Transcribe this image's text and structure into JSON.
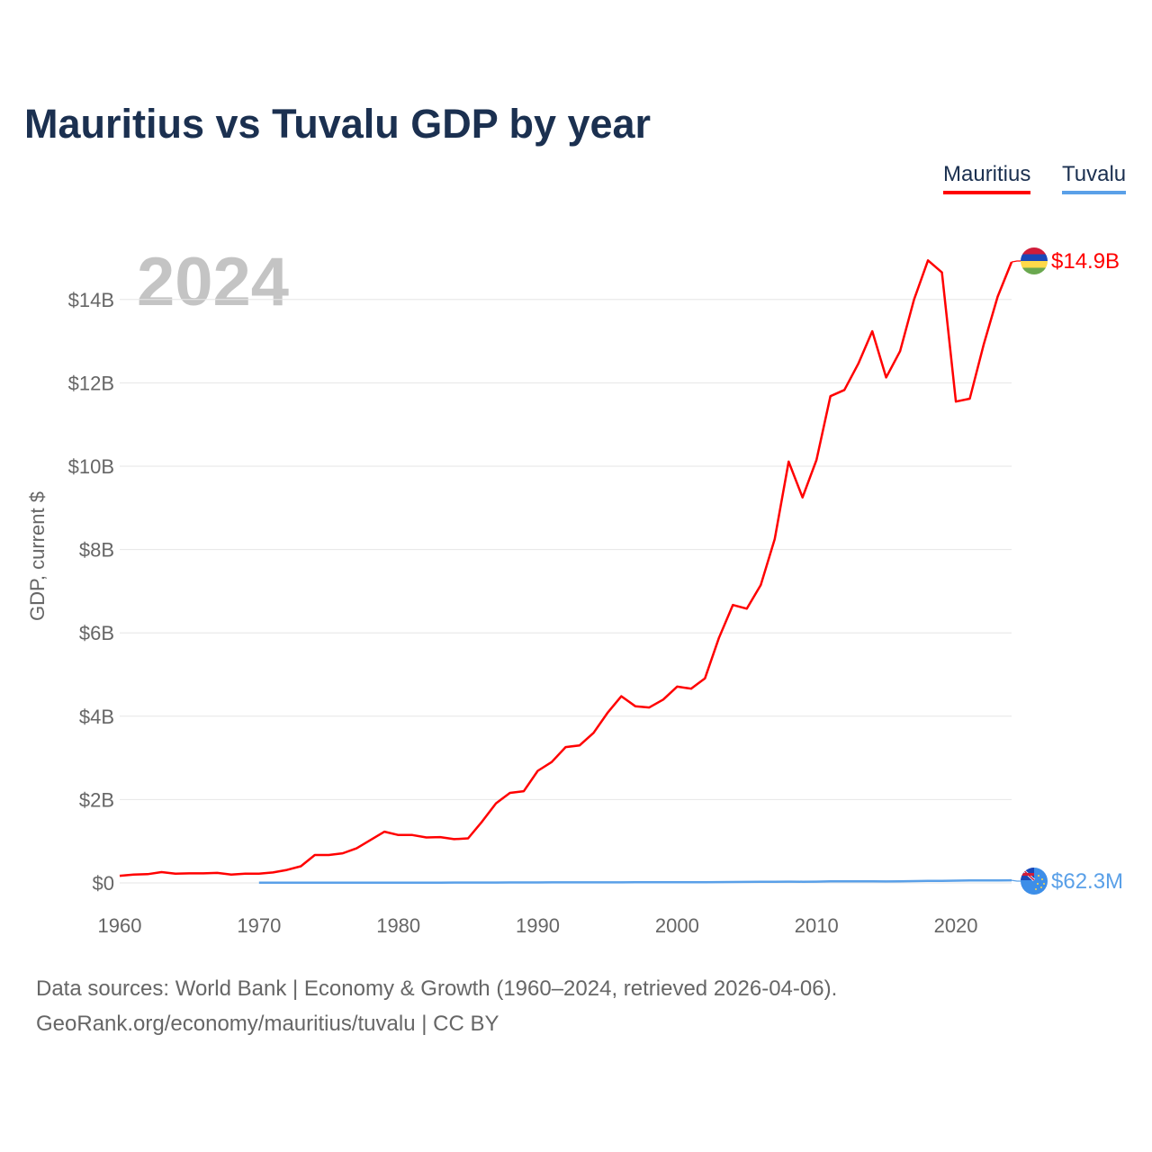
{
  "chart_data": {
    "type": "line",
    "title": "Mauritius vs Tuvalu GDP by year",
    "ylabel": "GDP, current $",
    "xlabel": "",
    "current_year_label": "2024",
    "xlim": [
      1960,
      2024
    ],
    "ylim": [
      0,
      15
    ],
    "x_ticks": [
      1960,
      1970,
      1980,
      1990,
      2000,
      2010,
      2020
    ],
    "y_ticks": [
      0,
      2,
      4,
      6,
      8,
      10,
      12,
      14
    ],
    "y_tick_labels": [
      "$0",
      "$2B",
      "$4B",
      "$6B",
      "$8B",
      "$10B",
      "$12B",
      "$14B"
    ],
    "grid": true,
    "legend_position": "top-right",
    "series": [
      {
        "name": "Mauritius",
        "color": "#ff0000",
        "start_year": 1960,
        "unit": "billion USD",
        "end_label": "$14.9B",
        "flag": "mauritius-flag",
        "values": [
          0.17,
          0.2,
          0.21,
          0.26,
          0.22,
          0.23,
          0.23,
          0.24,
          0.2,
          0.22,
          0.22,
          0.25,
          0.31,
          0.4,
          0.67,
          0.67,
          0.71,
          0.83,
          1.03,
          1.23,
          1.15,
          1.15,
          1.09,
          1.1,
          1.05,
          1.07,
          1.47,
          1.91,
          2.16,
          2.2,
          2.69,
          2.9,
          3.26,
          3.3,
          3.6,
          4.08,
          4.48,
          4.24,
          4.21,
          4.4,
          4.71,
          4.66,
          4.91,
          5.88,
          6.67,
          6.58,
          7.15,
          8.25,
          10.11,
          9.25,
          10.15,
          11.68,
          11.83,
          12.46,
          13.24,
          12.13,
          12.76,
          14.0,
          14.94,
          14.65,
          11.55,
          11.62,
          12.92,
          14.07,
          14.9
        ]
      },
      {
        "name": "Tuvalu",
        "color": "#5aa0e8",
        "start_year": 1970,
        "unit": "billion USD",
        "end_label": "$62.3M",
        "flag": "tuvalu-flag",
        "values": [
          0.005,
          0.005,
          0.005,
          0.005,
          0.006,
          0.006,
          0.006,
          0.006,
          0.006,
          0.007,
          0.007,
          0.007,
          0.007,
          0.007,
          0.008,
          0.008,
          0.008,
          0.009,
          0.01,
          0.011,
          0.011,
          0.012,
          0.012,
          0.012,
          0.013,
          0.014,
          0.014,
          0.015,
          0.015,
          0.016,
          0.016,
          0.015,
          0.016,
          0.019,
          0.022,
          0.023,
          0.025,
          0.028,
          0.03,
          0.028,
          0.031,
          0.037,
          0.039,
          0.038,
          0.037,
          0.035,
          0.038,
          0.043,
          0.047,
          0.05,
          0.055,
          0.058,
          0.06,
          0.061,
          0.0623
        ]
      }
    ]
  },
  "footer": {
    "line1": "Data sources: World Bank | Economy & Growth (1960–2024, retrieved 2026-04-06).",
    "line2": "GeoRank.org/economy/mauritius/tuvalu | CC BY"
  }
}
